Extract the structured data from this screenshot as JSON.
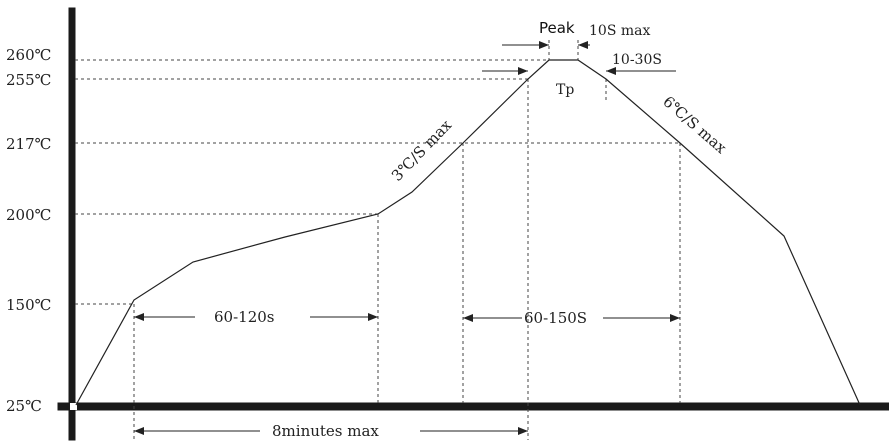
{
  "y_axis_labels": {
    "t260": "260℃",
    "t255": "255℃",
    "t217": "217℃",
    "t200": "200℃",
    "t150": "150℃",
    "t25": "25℃"
  },
  "annotations": {
    "peak": "Peak",
    "peak_time": "10S max",
    "tp_window": "10-30S",
    "tp": "Tp",
    "ramp_up": "3℃/S max",
    "ramp_down": "6℃/S max",
    "soak": "60-120s",
    "above_217": "60-150S",
    "total": "8minutes max"
  },
  "colors": {
    "line": "#222222",
    "axis": "#1a1a1a"
  }
}
